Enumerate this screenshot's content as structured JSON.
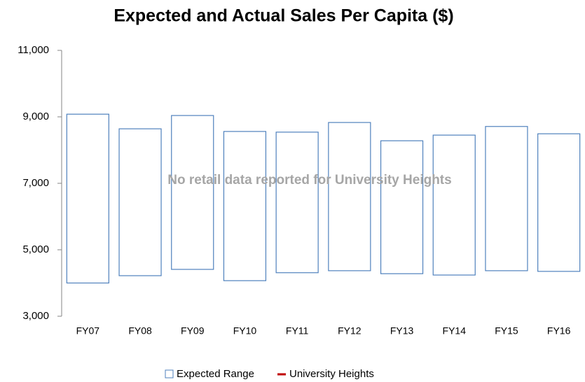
{
  "chart_data": {
    "type": "range_bar",
    "title": "Expected and Actual Sales Per Capita ($)",
    "annotation": "No retail data reported for University Heights",
    "categories": [
      "FY07",
      "FY08",
      "FY09",
      "FY10",
      "FY11",
      "FY12",
      "FY13",
      "FY14",
      "FY15",
      "FY16"
    ],
    "series": [
      {
        "name": "Expected Range",
        "color": "#4f81bd",
        "low": [
          4000,
          4220,
          4410,
          4070,
          4310,
          4370,
          4280,
          4240,
          4370,
          4350
        ],
        "high": [
          9080,
          8640,
          9040,
          8560,
          8540,
          8830,
          8280,
          8450,
          8710,
          8490
        ]
      },
      {
        "name": "University Heights",
        "color": "#c00000",
        "values": [
          null,
          null,
          null,
          null,
          null,
          null,
          null,
          null,
          null,
          null
        ]
      }
    ],
    "ylim": [
      3000,
      11000
    ],
    "yticks": [
      {
        "value": 3000,
        "label": "3,000"
      },
      {
        "value": 5000,
        "label": "5,000"
      },
      {
        "value": 7000,
        "label": "7,000"
      },
      {
        "value": 9000,
        "label": "9,000"
      },
      {
        "value": 11000,
        "label": "11,000"
      }
    ],
    "grid": false,
    "legend": "bottom"
  }
}
